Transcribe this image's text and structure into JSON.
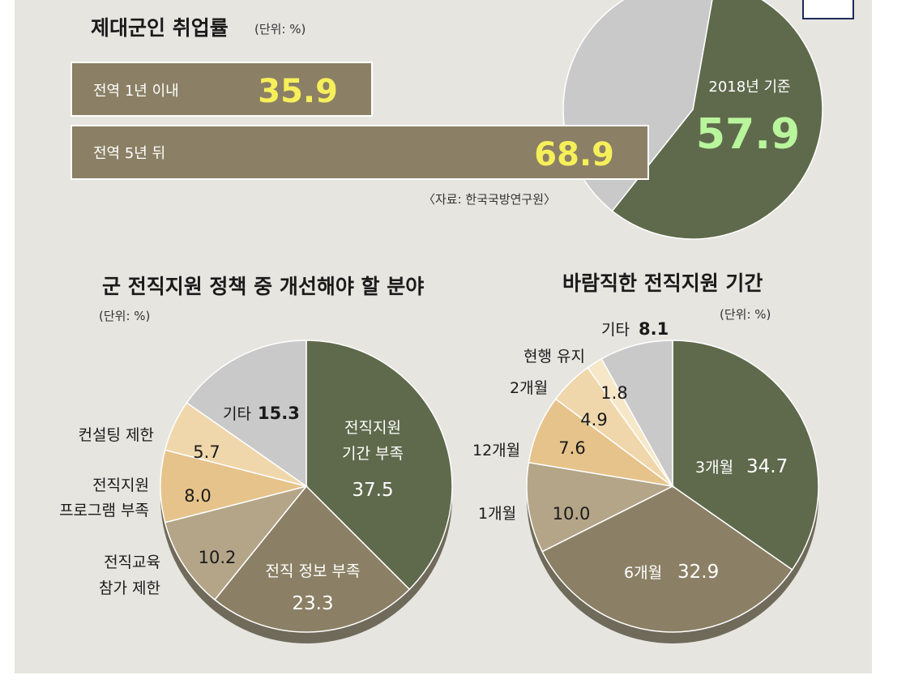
{
  "colors": {
    "panel": "#e6e5e0",
    "olive": "#5f6a4c",
    "taupe": "#8b8065",
    "tan": "#b4a588",
    "peach": "#e6c38a",
    "light_peach": "#f0d7ab",
    "pale": "#f6e7c8",
    "grey": "#c9c9c9",
    "yellow": "#f6ef5a",
    "green_num": "#b9f59c"
  },
  "chart_data": [
    {
      "type": "bar",
      "title": "제대군인 취업률",
      "unit": "(단위: %)",
      "categories": [
        "전역 1년 이내",
        "전역 5년 뒤"
      ],
      "values": [
        35.9,
        68.9
      ],
      "value_labels": [
        "35.9",
        "68.9"
      ],
      "source": "〈자료: 한국국방연구원〉"
    },
    {
      "type": "pie",
      "slices": [
        {
          "label": "2018년 기준",
          "value": 57.9,
          "value_label": "57.9",
          "color": "#5f6a4c"
        },
        {
          "label": "",
          "value": 42.1,
          "color": "#c9c9c9"
        }
      ]
    },
    {
      "type": "pie",
      "title": "군 전직지원 정책 중 개선해야 할 분야",
      "unit": "(단위: %)",
      "slices": [
        {
          "label": "전직지원 기간 부족",
          "value": 37.5,
          "value_label": "37.5",
          "color": "#5f6a4c"
        },
        {
          "label": "전직 정보 부족",
          "value": 23.3,
          "value_label": "23.3",
          "color": "#8b8065"
        },
        {
          "label": "전직교육 참가 제한",
          "value": 10.2,
          "value_label": "10.2",
          "color": "#b4a588"
        },
        {
          "label": "전직지원 프로그램 부족",
          "value": 8.0,
          "value_label": "8.0",
          "color": "#e6c38a"
        },
        {
          "label": "컨설팅 제한",
          "value": 5.7,
          "value_label": "5.7",
          "color": "#f0d7ab"
        },
        {
          "label": "기타",
          "value": 15.3,
          "value_label": "15.3",
          "color": "#c9c9c9"
        }
      ]
    },
    {
      "type": "pie",
      "title": "바람직한 전직지원 기간",
      "unit": "(단위: %)",
      "slices": [
        {
          "label": "3개월",
          "value": 34.7,
          "value_label": "34.7",
          "color": "#5f6a4c"
        },
        {
          "label": "6개월",
          "value": 32.9,
          "value_label": "32.9",
          "color": "#8b8065"
        },
        {
          "label": "1개월",
          "value": 10.0,
          "value_label": "10.0",
          "color": "#b4a588"
        },
        {
          "label": "12개월",
          "value": 7.6,
          "value_label": "7.6",
          "color": "#e6c38a"
        },
        {
          "label": "2개월",
          "value": 4.9,
          "value_label": "4.9",
          "color": "#f0d7ab"
        },
        {
          "label": "현행 유지",
          "value": 1.8,
          "value_label": "1.8",
          "color": "#f6e7c8"
        },
        {
          "label": "기타",
          "value": 8.1,
          "value_label": "8.1",
          "color": "#c9c9c9"
        }
      ]
    }
  ],
  "labels": {
    "b1_label": "전역 1년 이내",
    "b2_label": "전역 5년 뒤",
    "p1_pie_label": "2018년 기준",
    "p2_l1": "전직지원",
    "p2_l1b": "기간 부족",
    "p2_l2": "전직 정보 부족",
    "p2_l5": "컨설팅 제한",
    "p2_l4a": "전직지원",
    "p2_l4b": "프로그램 부족",
    "p2_l3a": "전직교육",
    "p2_l3b": "참가 제한",
    "p2_l6": "기타",
    "p3_l1": "3개월",
    "p3_l2": "6개월",
    "p3_l3": "1개월",
    "p3_l4": "12개월",
    "p3_l5": "2개월",
    "p3_l6": "현행 유지",
    "p3_l7": "기타"
  }
}
